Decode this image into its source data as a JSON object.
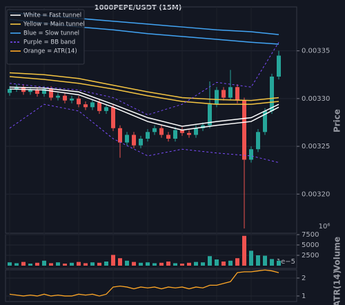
{
  "chart_data": {
    "type": "candlestick",
    "title": "1000PEPE/USDT (15M)",
    "ylabel": "Price",
    "ylim": [
      0.003159,
      0.003396
    ],
    "yticks": [
      {
        "value": 0.0032,
        "label": "0.00320"
      },
      {
        "value": 0.00325,
        "label": "0.00325"
      },
      {
        "value": 0.0033,
        "label": "0.00330"
      },
      {
        "value": 0.00335,
        "label": "0.00335"
      }
    ],
    "grid": true,
    "legend": "upper left",
    "up_color": "#26a69a",
    "down_color": "#ef5350",
    "open": [
      0.003306,
      0.00331,
      0.003312,
      0.003307,
      0.003309,
      0.003305,
      0.00331,
      0.003301,
      0.003303,
      0.003298,
      0.0033,
      0.003294,
      0.003291,
      0.003296,
      0.003287,
      0.003291,
      0.003269,
      0.003254,
      0.003262,
      0.003251,
      0.003258,
      0.003265,
      0.003269,
      0.003262,
      0.003258,
      0.003267,
      0.003264,
      0.003262,
      0.003269,
      0.003272,
      0.003294,
      0.003309,
      0.003301,
      0.003312,
      0.003298,
      0.003236,
      0.003247,
      0.003265,
      0.003287,
      0.003323
    ],
    "high": [
      0.003313,
      0.003315,
      0.003315,
      0.003312,
      0.003312,
      0.003313,
      0.003313,
      0.003306,
      0.003306,
      0.003303,
      0.003303,
      0.003297,
      0.003299,
      0.003299,
      0.003294,
      0.003294,
      0.003272,
      0.003265,
      0.003265,
      0.003261,
      0.003268,
      0.003272,
      0.003272,
      0.003265,
      0.00327,
      0.00327,
      0.003267,
      0.003272,
      0.003275,
      0.003318,
      0.003312,
      0.003312,
      0.00333,
      0.003315,
      0.003301,
      0.00325,
      0.003268,
      0.00329,
      0.003326,
      0.00335
    ],
    "low": [
      0.003303,
      0.003307,
      0.003304,
      0.003304,
      0.003302,
      0.003302,
      0.003298,
      0.003298,
      0.003295,
      0.003295,
      0.003291,
      0.003288,
      0.003288,
      0.003284,
      0.003284,
      0.003266,
      0.003238,
      0.003251,
      0.003248,
      0.003248,
      0.003255,
      0.003262,
      0.003259,
      0.003255,
      0.003255,
      0.003261,
      0.003259,
      0.003259,
      0.003266,
      0.003269,
      0.003291,
      0.003298,
      0.003298,
      0.003295,
      0.003164,
      0.003233,
      0.003244,
      0.003262,
      0.003284,
      0.00332
    ],
    "close": [
      0.00331,
      0.003312,
      0.003307,
      0.003309,
      0.003305,
      0.00331,
      0.003301,
      0.003303,
      0.003298,
      0.0033,
      0.003294,
      0.003291,
      0.003296,
      0.003287,
      0.003291,
      0.003269,
      0.003254,
      0.003262,
      0.003251,
      0.003258,
      0.003265,
      0.003269,
      0.003262,
      0.003258,
      0.003267,
      0.003264,
      0.003262,
      0.003269,
      0.003272,
      0.003294,
      0.003309,
      0.003301,
      0.003312,
      0.003298,
      0.003236,
      0.003247,
      0.003265,
      0.003287,
      0.003323,
      0.003345
    ],
    "overlays": [
      {
        "name": "White = Fast tunnel",
        "color": "#ffffff",
        "dashed": false,
        "x": [
          0,
          5,
          10,
          15,
          20,
          25,
          30,
          35,
          39
        ],
        "values": [
          [
            0.003312,
            0.003311,
            0.003307,
            0.003294,
            0.00328,
            0.003271,
            0.003276,
            0.00328,
            0.003294
          ],
          [
            0.00331,
            0.003309,
            0.003304,
            0.003291,
            0.003276,
            0.003267,
            0.003272,
            0.003276,
            0.003291
          ]
        ]
      },
      {
        "name": "Yellow = Main tunnel",
        "color": "#f5c542",
        "dashed": false,
        "x": [
          0,
          5,
          10,
          15,
          20,
          25,
          30,
          35,
          39
        ],
        "values": [
          [
            0.003327,
            0.003325,
            0.003321,
            0.003314,
            0.003307,
            0.003301,
            0.003299,
            0.003298,
            0.003301
          ],
          [
            0.003323,
            0.00332,
            0.003316,
            0.00331,
            0.003303,
            0.003297,
            0.003294,
            0.003294,
            0.003297
          ]
        ]
      },
      {
        "name": "Blue = Slow tunnel",
        "color": "#42a5f5",
        "dashed": false,
        "x": [
          0,
          5,
          10,
          15,
          20,
          25,
          30,
          35,
          39
        ],
        "values": [
          [
            0.00339,
            0.003387,
            0.003384,
            0.003381,
            0.003378,
            0.003375,
            0.003372,
            0.00337,
            0.003367
          ],
          [
            0.003383,
            0.003379,
            0.003375,
            0.003372,
            0.003368,
            0.003365,
            0.003362,
            0.003359,
            0.003357
          ]
        ]
      },
      {
        "name": "Purple = BB band",
        "color": "#7c4dff",
        "dashed": true,
        "x": [
          0,
          5,
          10,
          15,
          20,
          25,
          30,
          35,
          39
        ],
        "values": [
          [
            0.003316,
            0.003312,
            0.003309,
            0.003301,
            0.003283,
            0.003294,
            0.003317,
            0.003312,
            0.003359
          ],
          [
            0.003269,
            0.003294,
            0.003287,
            0.003258,
            0.00324,
            0.003247,
            0.003243,
            0.00324,
            0.003233
          ]
        ]
      }
    ],
    "volume": {
      "ylabel": "Volume",
      "offset_label": "10⁶",
      "ylim": [
        0,
        7500
      ],
      "yticks": [
        2500,
        5000,
        7500
      ],
      "values": [
        800,
        600,
        900,
        500,
        700,
        1200,
        600,
        800,
        500,
        700,
        900,
        600,
        800,
        700,
        1000,
        2600,
        1800,
        1200,
        900,
        700,
        800,
        600,
        700,
        1000,
        600,
        500,
        700,
        900,
        800,
        2300,
        1500,
        1000,
        1200,
        1800,
        7200,
        3600,
        2500,
        2400,
        1600,
        1200
      ]
    },
    "atr": {
      "name": "Orange = ATR(14)",
      "ylabel": "ATR(14)",
      "offset_label": "1e−5",
      "color": "#ffa726",
      "ylim": [
        0.69,
        2.46
      ],
      "yticks": [
        1,
        2
      ],
      "values": [
        1.1,
        1.05,
        1.0,
        1.05,
        1.0,
        1.1,
        1.0,
        1.05,
        1.0,
        1.0,
        1.1,
        1.05,
        1.1,
        1.0,
        1.1,
        1.5,
        1.55,
        1.5,
        1.4,
        1.5,
        1.45,
        1.5,
        1.4,
        1.5,
        1.45,
        1.5,
        1.4,
        1.5,
        1.45,
        1.6,
        1.6,
        1.7,
        1.8,
        2.3,
        2.35,
        2.35,
        2.4,
        2.45,
        2.4,
        2.3
      ]
    }
  }
}
